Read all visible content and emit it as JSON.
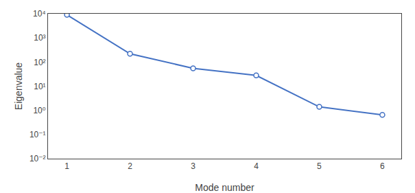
{
  "chart_data": {
    "type": "line",
    "x": [
      1,
      2,
      3,
      4,
      5,
      6
    ],
    "values": [
      9000,
      220,
      55,
      28,
      1.4,
      0.65
    ],
    "color": "#4472c4",
    "marker": "o",
    "xlabel": "Mode number",
    "ylabel": "Eigenvalue",
    "log": "y",
    "grid": false,
    "xlim": [
      0.7,
      6.3
    ],
    "ylim": [
      0.01,
      10000
    ],
    "xticks": [
      1,
      2,
      3,
      4,
      5,
      6
    ],
    "yticks": [
      {
        "value": 0.01,
        "label": "10⁻²"
      },
      {
        "value": 0.1,
        "label": "10⁻¹"
      },
      {
        "value": 1,
        "label": "10⁰"
      },
      {
        "value": 10,
        "label": "10¹"
      },
      {
        "value": 100,
        "label": "10²"
      },
      {
        "value": 1000,
        "label": "10³"
      },
      {
        "value": 10000,
        "label": "10⁴"
      }
    ]
  }
}
